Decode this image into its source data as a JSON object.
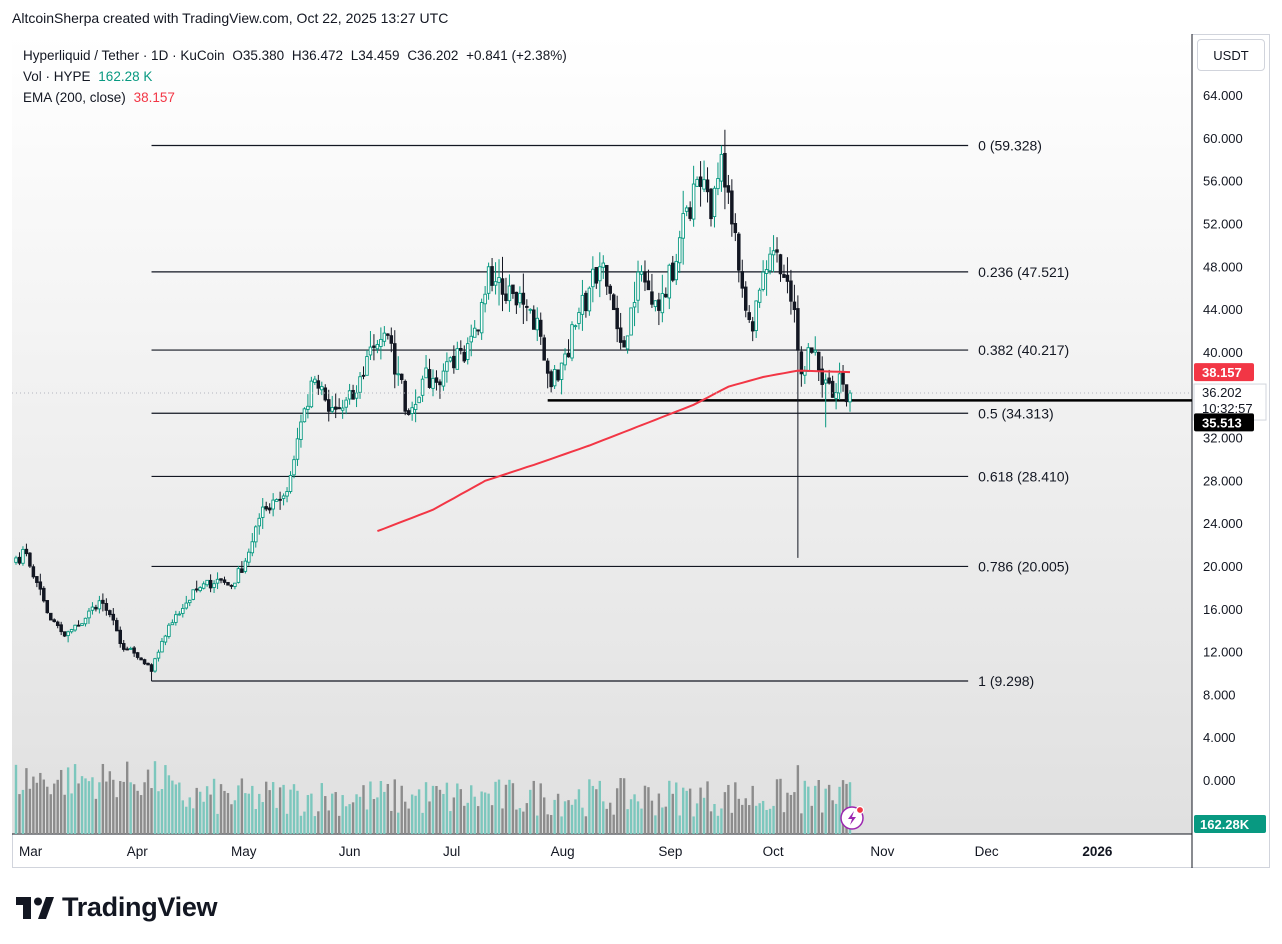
{
  "header": {
    "attribution": "AltcoinSherpa created with TradingView.com, Oct 22, 2025 13:27 UTC"
  },
  "legend": {
    "symbol": "Hyperliquid / Tether · 1D · KuCoin",
    "open": "O35.380",
    "high": "H36.472",
    "low": "L34.459",
    "close": "C36.202",
    "change": "+0.841 (+2.38%)",
    "vol_label": "Vol · HYPE",
    "vol_value": "162.28 K",
    "ema_label": "EMA (200, close)",
    "ema_value": "38.157"
  },
  "price_axis": {
    "unit": "USDT",
    "current_price": "36.202",
    "countdown": "10:32:57",
    "ema_tag": "38.157",
    "line_tag": "35.513",
    "volume_tag": "162.28K"
  },
  "footer": {
    "brand": "TradingView"
  },
  "colors": {
    "up": "#089981",
    "down": "#131722",
    "ema": "#f23645",
    "vol_up": "#7cc7bd",
    "vol_down": "#8c8c8c",
    "fib": "#131722",
    "accent": "#9c27b0"
  },
  "chart_data": {
    "type": "candlestick",
    "symbol": "HYPE/USDT",
    "timeframe": "1D",
    "ylim": [
      -3.5,
      69
    ],
    "y_ticks": [
      0,
      4,
      8,
      12,
      16,
      20,
      24,
      28,
      32,
      36,
      40,
      44,
      48,
      52,
      56,
      60,
      64
    ],
    "y_tick_labels": [
      "0.000",
      "4.000",
      "8.000",
      "12.000",
      "16.000",
      "20.000",
      "24.000",
      "28.000",
      "32.000",
      "36.000",
      "40.000",
      "44.000",
      "48.000",
      "52.000",
      "56.000",
      "60.000",
      "64.000"
    ],
    "x_labels": [
      {
        "label": "Mar",
        "day": 0
      },
      {
        "label": "Apr",
        "day": 31
      },
      {
        "label": "May",
        "day": 61
      },
      {
        "label": "Jun",
        "day": 92
      },
      {
        "label": "Jul",
        "day": 122
      },
      {
        "label": "Aug",
        "day": 153
      },
      {
        "label": "Sep",
        "day": 184
      },
      {
        "label": "Oct",
        "day": 214
      },
      {
        "label": "Nov",
        "day": 245
      },
      {
        "label": "Dec",
        "day": 275
      },
      {
        "label": "2026",
        "day": 306
      }
    ],
    "fib_levels": [
      {
        "ratio": "0",
        "price": 59.328,
        "label": "0 (59.328)"
      },
      {
        "ratio": "0.236",
        "price": 47.521,
        "label": "0.236 (47.521)"
      },
      {
        "ratio": "0.382",
        "price": 40.217,
        "label": "0.382 (40.217)"
      },
      {
        "ratio": "0.5",
        "price": 34.313,
        "label": "0.5 (34.313)"
      },
      {
        "ratio": "0.618",
        "price": 28.41,
        "label": "0.618 (28.410)"
      },
      {
        "ratio": "0.786",
        "price": 20.005,
        "label": "0.786 (20.005)"
      },
      {
        "ratio": "1",
        "price": 9.298,
        "label": "1 (9.298)"
      }
    ],
    "fib_day_start": 39,
    "fib_day_end": 274,
    "horizontal_line": {
      "price": 35.513,
      "day_start": 153
    },
    "anchors": [
      {
        "day": 0,
        "close": 20.8
      },
      {
        "day": 3,
        "close": 21.2
      },
      {
        "day": 6,
        "close": 18.5
      },
      {
        "day": 10,
        "close": 15.0
      },
      {
        "day": 14,
        "close": 13.5
      },
      {
        "day": 18,
        "close": 14.5
      },
      {
        "day": 24,
        "close": 16.8
      },
      {
        "day": 27,
        "close": 15.5
      },
      {
        "day": 30,
        "close": 12.8
      },
      {
        "day": 35,
        "close": 11.5
      },
      {
        "day": 39,
        "close": 10.2
      },
      {
        "day": 42,
        "close": 13.0
      },
      {
        "day": 46,
        "close": 15.5
      },
      {
        "day": 52,
        "close": 17.8
      },
      {
        "day": 58,
        "close": 18.8
      },
      {
        "day": 62,
        "close": 18.2
      },
      {
        "day": 66,
        "close": 20.5
      },
      {
        "day": 70,
        "close": 24.5
      },
      {
        "day": 74,
        "close": 26.2
      },
      {
        "day": 78,
        "close": 27.0
      },
      {
        "day": 82,
        "close": 33.5
      },
      {
        "day": 86,
        "close": 37.5
      },
      {
        "day": 90,
        "close": 34.5
      },
      {
        "day": 94,
        "close": 34.8
      },
      {
        "day": 98,
        "close": 36.2
      },
      {
        "day": 102,
        "close": 40.5
      },
      {
        "day": 106,
        "close": 41.8
      },
      {
        "day": 110,
        "close": 38.0
      },
      {
        "day": 113,
        "close": 34.2
      },
      {
        "day": 117,
        "close": 37.5
      },
      {
        "day": 121,
        "close": 37.2
      },
      {
        "day": 125,
        "close": 39.5
      },
      {
        "day": 129,
        "close": 39.2
      },
      {
        "day": 133,
        "close": 42.0
      },
      {
        "day": 136,
        "close": 48.0
      },
      {
        "day": 139,
        "close": 47.0
      },
      {
        "day": 143,
        "close": 45.5
      },
      {
        "day": 147,
        "close": 44.2
      },
      {
        "day": 151,
        "close": 41.5
      },
      {
        "day": 154,
        "close": 36.8
      },
      {
        "day": 157,
        "close": 39.0
      },
      {
        "day": 161,
        "close": 42.5
      },
      {
        "day": 165,
        "close": 46.0
      },
      {
        "day": 168,
        "close": 48.0
      },
      {
        "day": 172,
        "close": 44.0
      },
      {
        "day": 175,
        "close": 40.5
      },
      {
        "day": 179,
        "close": 47.5
      },
      {
        "day": 183,
        "close": 44.5
      },
      {
        "day": 186,
        "close": 45.5
      },
      {
        "day": 190,
        "close": 48.5
      },
      {
        "day": 193,
        "close": 53.5
      },
      {
        "day": 197,
        "close": 55.5
      },
      {
        "day": 200,
        "close": 52.5
      },
      {
        "day": 203,
        "close": 58.5
      },
      {
        "day": 206,
        "close": 52.0
      },
      {
        "day": 209,
        "close": 46.0
      },
      {
        "day": 212,
        "close": 42.0
      },
      {
        "day": 215,
        "close": 47.5
      },
      {
        "day": 218,
        "close": 49.5
      },
      {
        "day": 221,
        "close": 47.0
      },
      {
        "day": 224,
        "close": 44.0
      },
      {
        "day": 226,
        "close": 38.0
      },
      {
        "day": 229,
        "close": 40.0
      },
      {
        "day": 232,
        "close": 37.0
      },
      {
        "day": 235,
        "close": 35.8
      },
      {
        "day": 237,
        "close": 38.0
      },
      {
        "day": 239,
        "close": 35.4
      },
      {
        "day": 240,
        "close": 36.2
      }
    ],
    "wick_overrides": [
      {
        "day": 203,
        "high": 59.328
      },
      {
        "day": 225,
        "low": 20.8
      },
      {
        "day": 39,
        "low": 9.298
      },
      {
        "day": 233,
        "low": 33.0
      }
    ],
    "ema": {
      "name": "EMA (200, close)",
      "start_day": 104,
      "points": [
        {
          "day": 104,
          "value": 23.3
        },
        {
          "day": 120,
          "value": 25.3
        },
        {
          "day": 135,
          "value": 28.0
        },
        {
          "day": 150,
          "value": 29.6
        },
        {
          "day": 165,
          "value": 31.3
        },
        {
          "day": 180,
          "value": 33.2
        },
        {
          "day": 195,
          "value": 35.1
        },
        {
          "day": 205,
          "value": 36.8
        },
        {
          "day": 215,
          "value": 37.7
        },
        {
          "day": 225,
          "value": 38.3
        },
        {
          "day": 240,
          "value": 38.157
        }
      ]
    },
    "last": {
      "open": 35.38,
      "high": 36.472,
      "low": 34.459,
      "close": 36.202,
      "change": 0.841,
      "change_pct": 2.38
    },
    "volume_last": "162.28K"
  }
}
